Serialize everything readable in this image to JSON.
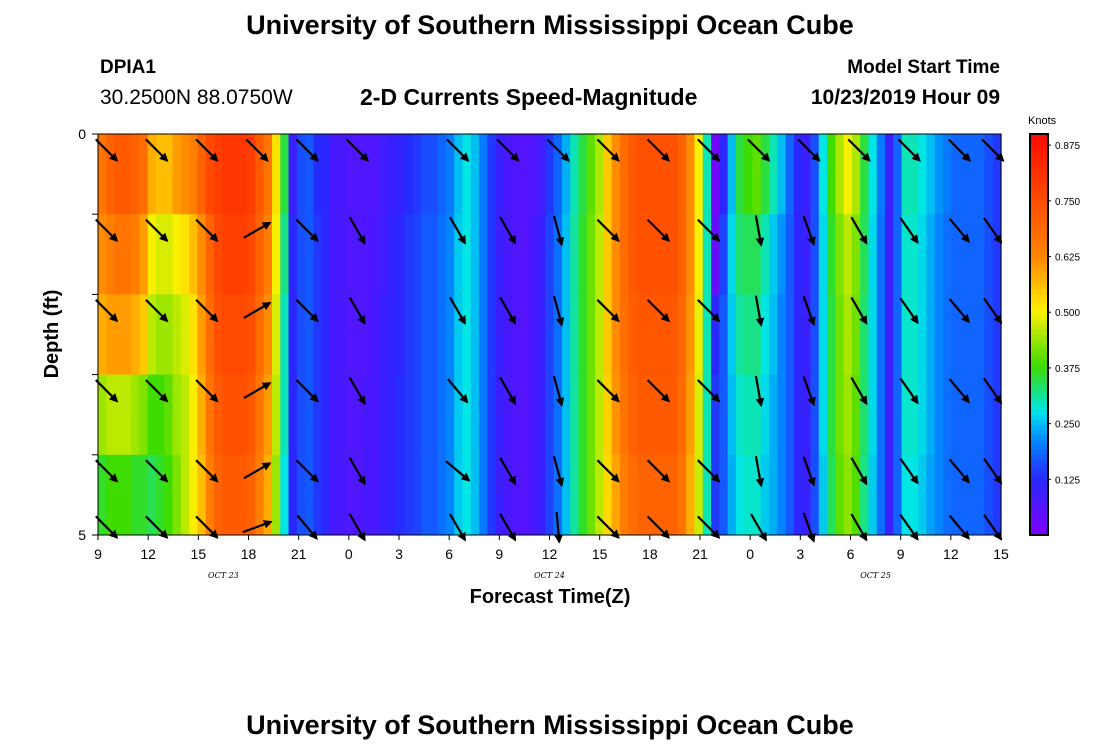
{
  "header": {
    "title": "University of Southern Mississippi Ocean Cube",
    "station": "DPIA1",
    "coordinates": "30.2500N 88.0750W",
    "subtitle": "2-D Currents Speed-Magnitude",
    "model_label": "Model Start Time",
    "model_date": "10/23/2019 Hour 09"
  },
  "footer": {
    "title": "University of Southern Mississippi Ocean Cube"
  },
  "chart_data": {
    "type": "heatmap",
    "title": "2-D Currents Speed-Magnitude",
    "xlabel": "Forecast Time(Z)",
    "ylabel": "Depth (ft)",
    "x_range_hours": [
      0,
      54
    ],
    "ylim": [
      0,
      5
    ],
    "xticks": [
      {
        "h": 0,
        "label": "9"
      },
      {
        "h": 3,
        "label": "12"
      },
      {
        "h": 6,
        "label": "15"
      },
      {
        "h": 9,
        "label": "18"
      },
      {
        "h": 12,
        "label": "21"
      },
      {
        "h": 15,
        "label": "0"
      },
      {
        "h": 18,
        "label": "3"
      },
      {
        "h": 21,
        "label": "6"
      },
      {
        "h": 24,
        "label": "9"
      },
      {
        "h": 27,
        "label": "12"
      },
      {
        "h": 30,
        "label": "15"
      },
      {
        "h": 33,
        "label": "18"
      },
      {
        "h": 36,
        "label": "21"
      },
      {
        "h": 39,
        "label": "0"
      },
      {
        "h": 42,
        "label": "3"
      },
      {
        "h": 45,
        "label": "6"
      },
      {
        "h": 48,
        "label": "9"
      },
      {
        "h": 51,
        "label": "12"
      },
      {
        "h": 54,
        "label": "15"
      }
    ],
    "date_labels": [
      {
        "h": 7.5,
        "label": "OCT 23"
      },
      {
        "h": 27,
        "label": "OCT 24"
      },
      {
        "h": 46.5,
        "label": "OCT 25"
      }
    ],
    "yticks": [
      {
        "v": 0,
        "label": "0"
      },
      {
        "v": 5,
        "label": "5"
      }
    ],
    "colorbar": {
      "title": "Knots",
      "min": 0.0,
      "max": 0.9,
      "ticks": [
        "0.125",
        "0.250",
        "0.375",
        "0.500",
        "0.625",
        "0.750",
        "0.875"
      ],
      "tick_values": [
        0.125,
        0.25,
        0.375,
        0.5,
        0.625,
        0.75,
        0.875
      ]
    },
    "depth_levels": 5,
    "speed_knots_by_hour": [
      [
        0.66,
        0.7,
        0.72,
        0.72,
        0.7,
        0.68,
        0.58,
        0.56,
        0.56,
        0.6,
        0.62,
        0.64,
        0.7,
        0.76,
        0.78,
        0.8,
        0.8,
        0.8,
        0.78,
        0.72,
        0.66,
        0.52,
        0.35,
        0.1,
        0.16,
        0.17,
        0.13,
        0.12,
        0.08,
        0.08,
        0.07,
        0.07,
        0.07,
        0.07,
        0.09,
        0.1,
        0.11,
        0.13,
        0.14,
        0.16,
        0.16,
        0.18,
        0.2,
        0.25,
        0.28,
        0.25,
        0.2,
        0.14,
        0.1,
        0.08,
        0.07,
        0.06,
        0.07,
        0.09,
        0.14,
        0.18,
        0.24,
        0.3,
        0.35,
        0.4,
        0.45,
        0.55,
        0.62,
        0.68,
        0.72,
        0.74,
        0.74,
        0.74,
        0.74,
        0.74,
        0.7,
        0.62,
        0.5,
        0.3,
        0.02,
        0.12,
        0.25,
        0.35,
        0.38,
        0.4,
        0.35,
        0.3,
        0.25,
        0.18,
        0.12,
        0.1,
        0.16,
        0.28,
        0.38,
        0.45,
        0.5,
        0.45,
        0.35,
        0.28,
        0.2,
        0.1,
        0.18,
        0.3,
        0.3,
        0.28,
        0.25,
        0.22,
        0.2,
        0.18,
        0.18,
        0.18,
        0.18,
        0.16,
        0.14
      ],
      [
        0.62,
        0.64,
        0.66,
        0.66,
        0.64,
        0.6,
        0.5,
        0.48,
        0.48,
        0.5,
        0.52,
        0.56,
        0.62,
        0.7,
        0.76,
        0.78,
        0.78,
        0.78,
        0.76,
        0.7,
        0.64,
        0.5,
        0.32,
        0.12,
        0.16,
        0.17,
        0.14,
        0.12,
        0.08,
        0.08,
        0.07,
        0.07,
        0.07,
        0.08,
        0.09,
        0.11,
        0.12,
        0.14,
        0.15,
        0.17,
        0.17,
        0.19,
        0.21,
        0.26,
        0.28,
        0.25,
        0.2,
        0.14,
        0.1,
        0.08,
        0.07,
        0.06,
        0.08,
        0.1,
        0.15,
        0.19,
        0.25,
        0.31,
        0.36,
        0.41,
        0.46,
        0.55,
        0.62,
        0.68,
        0.72,
        0.74,
        0.74,
        0.74,
        0.74,
        0.74,
        0.7,
        0.62,
        0.5,
        0.3,
        0.04,
        0.15,
        0.27,
        0.33,
        0.34,
        0.34,
        0.3,
        0.26,
        0.22,
        0.17,
        0.12,
        0.1,
        0.16,
        0.27,
        0.36,
        0.42,
        0.46,
        0.42,
        0.34,
        0.27,
        0.19,
        0.1,
        0.18,
        0.29,
        0.29,
        0.27,
        0.24,
        0.21,
        0.19,
        0.18,
        0.18,
        0.18,
        0.18,
        0.16,
        0.14
      ],
      [
        0.58,
        0.6,
        0.6,
        0.6,
        0.58,
        0.55,
        0.46,
        0.44,
        0.44,
        0.46,
        0.48,
        0.52,
        0.6,
        0.68,
        0.74,
        0.76,
        0.76,
        0.76,
        0.74,
        0.68,
        0.62,
        0.48,
        0.3,
        0.12,
        0.16,
        0.17,
        0.14,
        0.12,
        0.08,
        0.08,
        0.07,
        0.07,
        0.07,
        0.08,
        0.1,
        0.11,
        0.12,
        0.14,
        0.15,
        0.17,
        0.17,
        0.19,
        0.21,
        0.26,
        0.28,
        0.25,
        0.2,
        0.14,
        0.1,
        0.08,
        0.07,
        0.06,
        0.08,
        0.1,
        0.15,
        0.19,
        0.25,
        0.31,
        0.36,
        0.41,
        0.46,
        0.55,
        0.62,
        0.67,
        0.71,
        0.73,
        0.73,
        0.73,
        0.73,
        0.73,
        0.69,
        0.61,
        0.49,
        0.3,
        0.12,
        0.17,
        0.26,
        0.31,
        0.32,
        0.32,
        0.28,
        0.25,
        0.21,
        0.17,
        0.12,
        0.1,
        0.16,
        0.27,
        0.35,
        0.41,
        0.45,
        0.41,
        0.33,
        0.27,
        0.19,
        0.1,
        0.18,
        0.29,
        0.29,
        0.27,
        0.24,
        0.21,
        0.19,
        0.18,
        0.18,
        0.18,
        0.18,
        0.16,
        0.14
      ],
      [
        0.44,
        0.46,
        0.46,
        0.46,
        0.44,
        0.42,
        0.38,
        0.38,
        0.4,
        0.44,
        0.46,
        0.5,
        0.58,
        0.66,
        0.72,
        0.74,
        0.74,
        0.74,
        0.72,
        0.66,
        0.6,
        0.46,
        0.3,
        0.12,
        0.16,
        0.17,
        0.14,
        0.12,
        0.08,
        0.08,
        0.07,
        0.07,
        0.08,
        0.08,
        0.1,
        0.11,
        0.13,
        0.14,
        0.15,
        0.17,
        0.17,
        0.19,
        0.21,
        0.26,
        0.28,
        0.25,
        0.2,
        0.14,
        0.1,
        0.08,
        0.07,
        0.06,
        0.08,
        0.1,
        0.15,
        0.19,
        0.25,
        0.31,
        0.36,
        0.41,
        0.46,
        0.54,
        0.61,
        0.66,
        0.7,
        0.72,
        0.72,
        0.72,
        0.72,
        0.72,
        0.68,
        0.6,
        0.48,
        0.3,
        0.14,
        0.17,
        0.25,
        0.29,
        0.3,
        0.3,
        0.27,
        0.24,
        0.21,
        0.17,
        0.12,
        0.1,
        0.16,
        0.27,
        0.35,
        0.41,
        0.44,
        0.4,
        0.33,
        0.27,
        0.19,
        0.1,
        0.18,
        0.29,
        0.29,
        0.27,
        0.24,
        0.21,
        0.19,
        0.18,
        0.18,
        0.18,
        0.18,
        0.16,
        0.14
      ],
      [
        0.36,
        0.38,
        0.38,
        0.38,
        0.36,
        0.36,
        0.34,
        0.36,
        0.38,
        0.42,
        0.46,
        0.5,
        0.56,
        0.64,
        0.7,
        0.72,
        0.72,
        0.72,
        0.7,
        0.64,
        0.58,
        0.44,
        0.28,
        0.12,
        0.16,
        0.17,
        0.14,
        0.12,
        0.08,
        0.08,
        0.07,
        0.07,
        0.08,
        0.08,
        0.1,
        0.11,
        0.13,
        0.14,
        0.15,
        0.17,
        0.17,
        0.19,
        0.21,
        0.26,
        0.28,
        0.25,
        0.2,
        0.14,
        0.1,
        0.08,
        0.07,
        0.06,
        0.08,
        0.1,
        0.15,
        0.19,
        0.25,
        0.31,
        0.36,
        0.41,
        0.46,
        0.53,
        0.59,
        0.64,
        0.68,
        0.7,
        0.7,
        0.7,
        0.7,
        0.7,
        0.66,
        0.58,
        0.47,
        0.3,
        0.14,
        0.17,
        0.24,
        0.28,
        0.29,
        0.29,
        0.26,
        0.24,
        0.21,
        0.17,
        0.12,
        0.1,
        0.16,
        0.26,
        0.34,
        0.4,
        0.43,
        0.39,
        0.32,
        0.26,
        0.19,
        0.1,
        0.18,
        0.28,
        0.28,
        0.26,
        0.23,
        0.21,
        0.19,
        0.18,
        0.18,
        0.18,
        0.18,
        0.16,
        0.14
      ]
    ],
    "vectors": {
      "hours": [
        0.5,
        3.5,
        6.5,
        9.5,
        12.5,
        15.5,
        21.5,
        24.5,
        27.5,
        30.5,
        33.5,
        36.5,
        39.5,
        42.5,
        45.5,
        48.5,
        51.5,
        53.5
      ],
      "depths": [
        0.2,
        1.2,
        2.2,
        3.2,
        4.2,
        4.9
      ],
      "direction_deg": [
        [
          135,
          135,
          135,
          135,
          135,
          135,
          135,
          135,
          135,
          135,
          135,
          135,
          135,
          135,
          135,
          135,
          135,
          135
        ],
        [
          135,
          135,
          135,
          60,
          135,
          150,
          150,
          150,
          165,
          135,
          135,
          135,
          170,
          160,
          150,
          145,
          140,
          145
        ],
        [
          135,
          135,
          135,
          60,
          135,
          150,
          150,
          150,
          165,
          135,
          135,
          135,
          170,
          160,
          150,
          145,
          140,
          145
        ],
        [
          135,
          135,
          135,
          60,
          135,
          150,
          140,
          150,
          165,
          135,
          135,
          135,
          170,
          160,
          150,
          145,
          140,
          145
        ],
        [
          135,
          135,
          135,
          60,
          135,
          150,
          130,
          150,
          165,
          135,
          135,
          135,
          170,
          160,
          150,
          145,
          140,
          145
        ],
        [
          135,
          135,
          135,
          70,
          140,
          150,
          150,
          150,
          175,
          135,
          135,
          135,
          150,
          160,
          150,
          145,
          140,
          145
        ]
      ]
    }
  }
}
